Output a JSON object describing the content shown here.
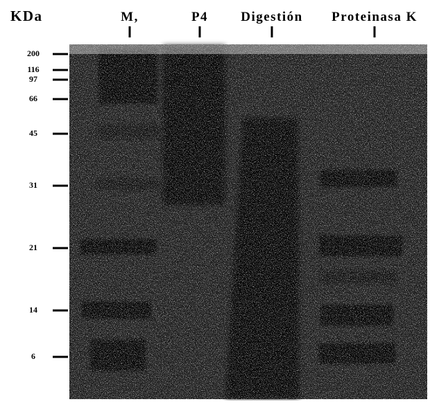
{
  "header": {
    "unit": "KDa"
  },
  "lanes": [
    "M,",
    "P4",
    "Digestión",
    "Proteinasa K"
  ],
  "markers": [
    200,
    116,
    97,
    66,
    45,
    31,
    21,
    14,
    6
  ]
}
